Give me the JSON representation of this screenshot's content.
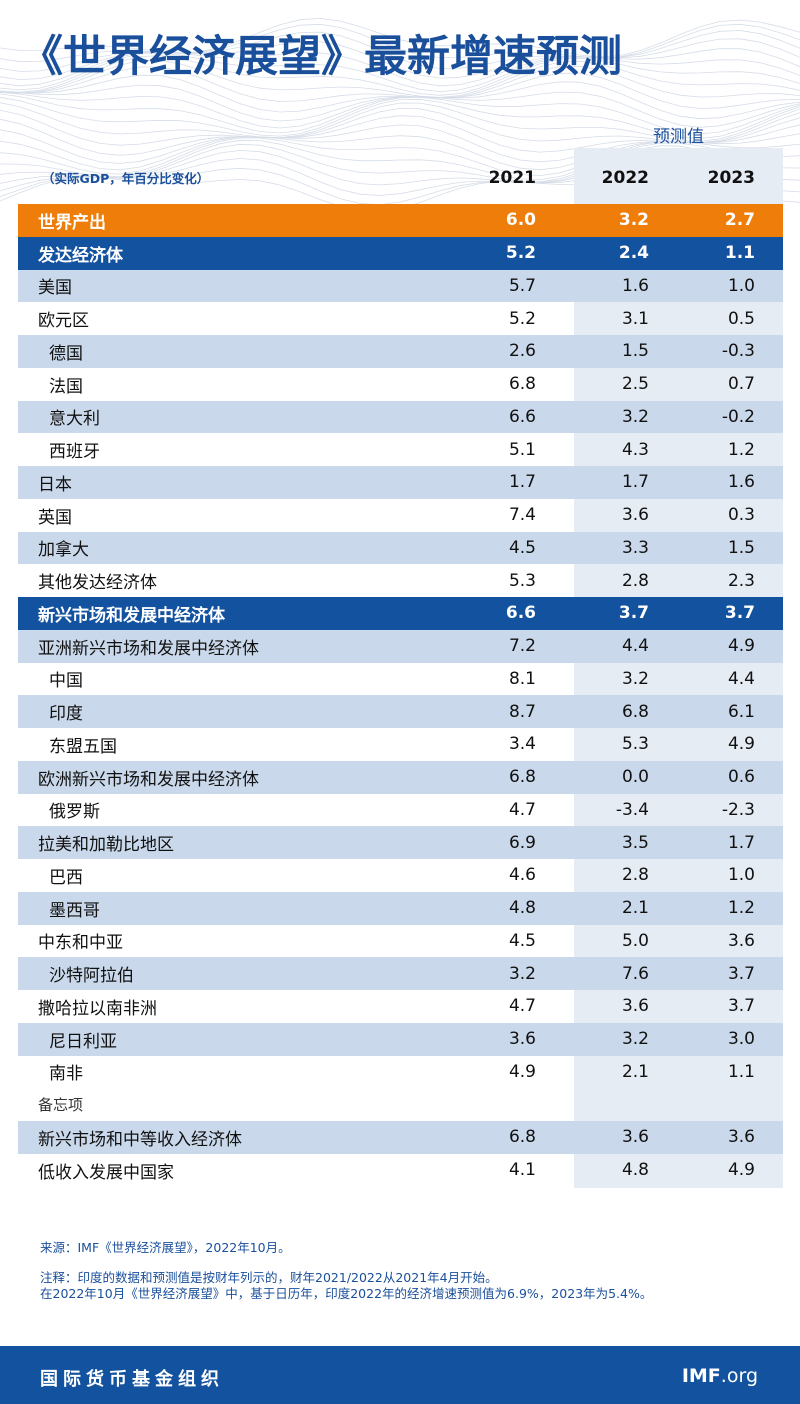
{
  "title": "《世界经济展望》最新增速预测",
  "forecast_label": "预测值",
  "unit_note": "（实际GDP，年百分比变化）",
  "colors": {
    "brand_blue": "#13529f",
    "orange": "#ee7d0a",
    "light_blue": "#c9d8ea"
  },
  "chart_data": {
    "type": "table",
    "columns": [
      "2021",
      "2022",
      "2023"
    ],
    "rows": [
      {
        "label": "世界产出",
        "values": [
          "6.0",
          "3.2",
          "2.7"
        ],
        "style": "world"
      },
      {
        "label": "发达经济体",
        "values": [
          "5.2",
          "2.4",
          "1.1"
        ],
        "style": "group"
      },
      {
        "label": "美国",
        "values": [
          "5.7",
          "1.6",
          "1.0"
        ],
        "style": "shade"
      },
      {
        "label": "欧元区",
        "values": [
          "5.2",
          "3.1",
          "0.5"
        ],
        "style": "plain"
      },
      {
        "label": "德国",
        "values": [
          "2.6",
          "1.5",
          "-0.3"
        ],
        "style": "shade",
        "indent": true
      },
      {
        "label": "法国",
        "values": [
          "6.8",
          "2.5",
          "0.7"
        ],
        "style": "plain",
        "indent": true
      },
      {
        "label": "意大利",
        "values": [
          "6.6",
          "3.2",
          "-0.2"
        ],
        "style": "shade",
        "indent": true
      },
      {
        "label": "西班牙",
        "values": [
          "5.1",
          "4.3",
          "1.2"
        ],
        "style": "plain",
        "indent": true
      },
      {
        "label": "日本",
        "values": [
          "1.7",
          "1.7",
          "1.6"
        ],
        "style": "shade"
      },
      {
        "label": "英国",
        "values": [
          "7.4",
          "3.6",
          "0.3"
        ],
        "style": "plain"
      },
      {
        "label": "加拿大",
        "values": [
          "4.5",
          "3.3",
          "1.5"
        ],
        "style": "shade"
      },
      {
        "label": "其他发达经济体",
        "values": [
          "5.3",
          "2.8",
          "2.3"
        ],
        "style": "plain"
      },
      {
        "label": "新兴市场和发展中经济体",
        "values": [
          "6.6",
          "3.7",
          "3.7"
        ],
        "style": "group"
      },
      {
        "label": "亚洲新兴市场和发展中经济体",
        "values": [
          "7.2",
          "4.4",
          "4.9"
        ],
        "style": "shade"
      },
      {
        "label": "中国",
        "values": [
          "8.1",
          "3.2",
          "4.4"
        ],
        "style": "plain",
        "indent": true
      },
      {
        "label": "印度",
        "values": [
          "8.7",
          "6.8",
          "6.1"
        ],
        "style": "shade",
        "indent": true
      },
      {
        "label": "东盟五国",
        "values": [
          "3.4",
          "5.3",
          "4.9"
        ],
        "style": "plain",
        "indent": true
      },
      {
        "label": "欧洲新兴市场和发展中经济体",
        "values": [
          "6.8",
          "0.0",
          "0.6"
        ],
        "style": "shade"
      },
      {
        "label": "俄罗斯",
        "values": [
          "4.7",
          "-3.4",
          "-2.3"
        ],
        "style": "plain",
        "indent": true
      },
      {
        "label": "拉美和加勒比地区",
        "values": [
          "6.9",
          "3.5",
          "1.7"
        ],
        "style": "shade"
      },
      {
        "label": "巴西",
        "values": [
          "4.6",
          "2.8",
          "1.0"
        ],
        "style": "plain",
        "indent": true
      },
      {
        "label": "墨西哥",
        "values": [
          "4.8",
          "2.1",
          "1.2"
        ],
        "style": "shade",
        "indent": true
      },
      {
        "label": "中东和中亚",
        "values": [
          "4.5",
          "5.0",
          "3.6"
        ],
        "style": "plain"
      },
      {
        "label": "沙特阿拉伯",
        "values": [
          "3.2",
          "7.6",
          "3.7"
        ],
        "style": "shade",
        "indent": true
      },
      {
        "label": "撒哈拉以南非洲",
        "values": [
          "4.7",
          "3.6",
          "3.7"
        ],
        "style": "plain"
      },
      {
        "label": "尼日利亚",
        "values": [
          "3.6",
          "3.2",
          "3.0"
        ],
        "style": "shade",
        "indent": true
      },
      {
        "label": "南非",
        "values": [
          "4.9",
          "2.1",
          "1.1"
        ],
        "style": "plain",
        "indent": true
      },
      {
        "label": "备忘项",
        "values": [
          "",
          "",
          ""
        ],
        "style": "memo"
      },
      {
        "label": "新兴市场和中等收入经济体",
        "values": [
          "6.8",
          "3.6",
          "3.6"
        ],
        "style": "shade"
      },
      {
        "label": "低收入发展中国家",
        "values": [
          "4.1",
          "4.8",
          "4.9"
        ],
        "style": "plain"
      }
    ]
  },
  "source": "来源：IMF《世界经济展望》，2022年10月。",
  "notes": [
    "注释：印度的数据和预测值是按财年列示的，财年2021/2022从2021年4月开始。",
    "在2022年10月《世界经济展望》中，基于日历年，印度2022年的经济增速预测值为6.9%，2023年为5.4%。"
  ],
  "footer": {
    "org": "国际货币基金组织",
    "site_bold": "IMF",
    "site_rest": ".org"
  }
}
